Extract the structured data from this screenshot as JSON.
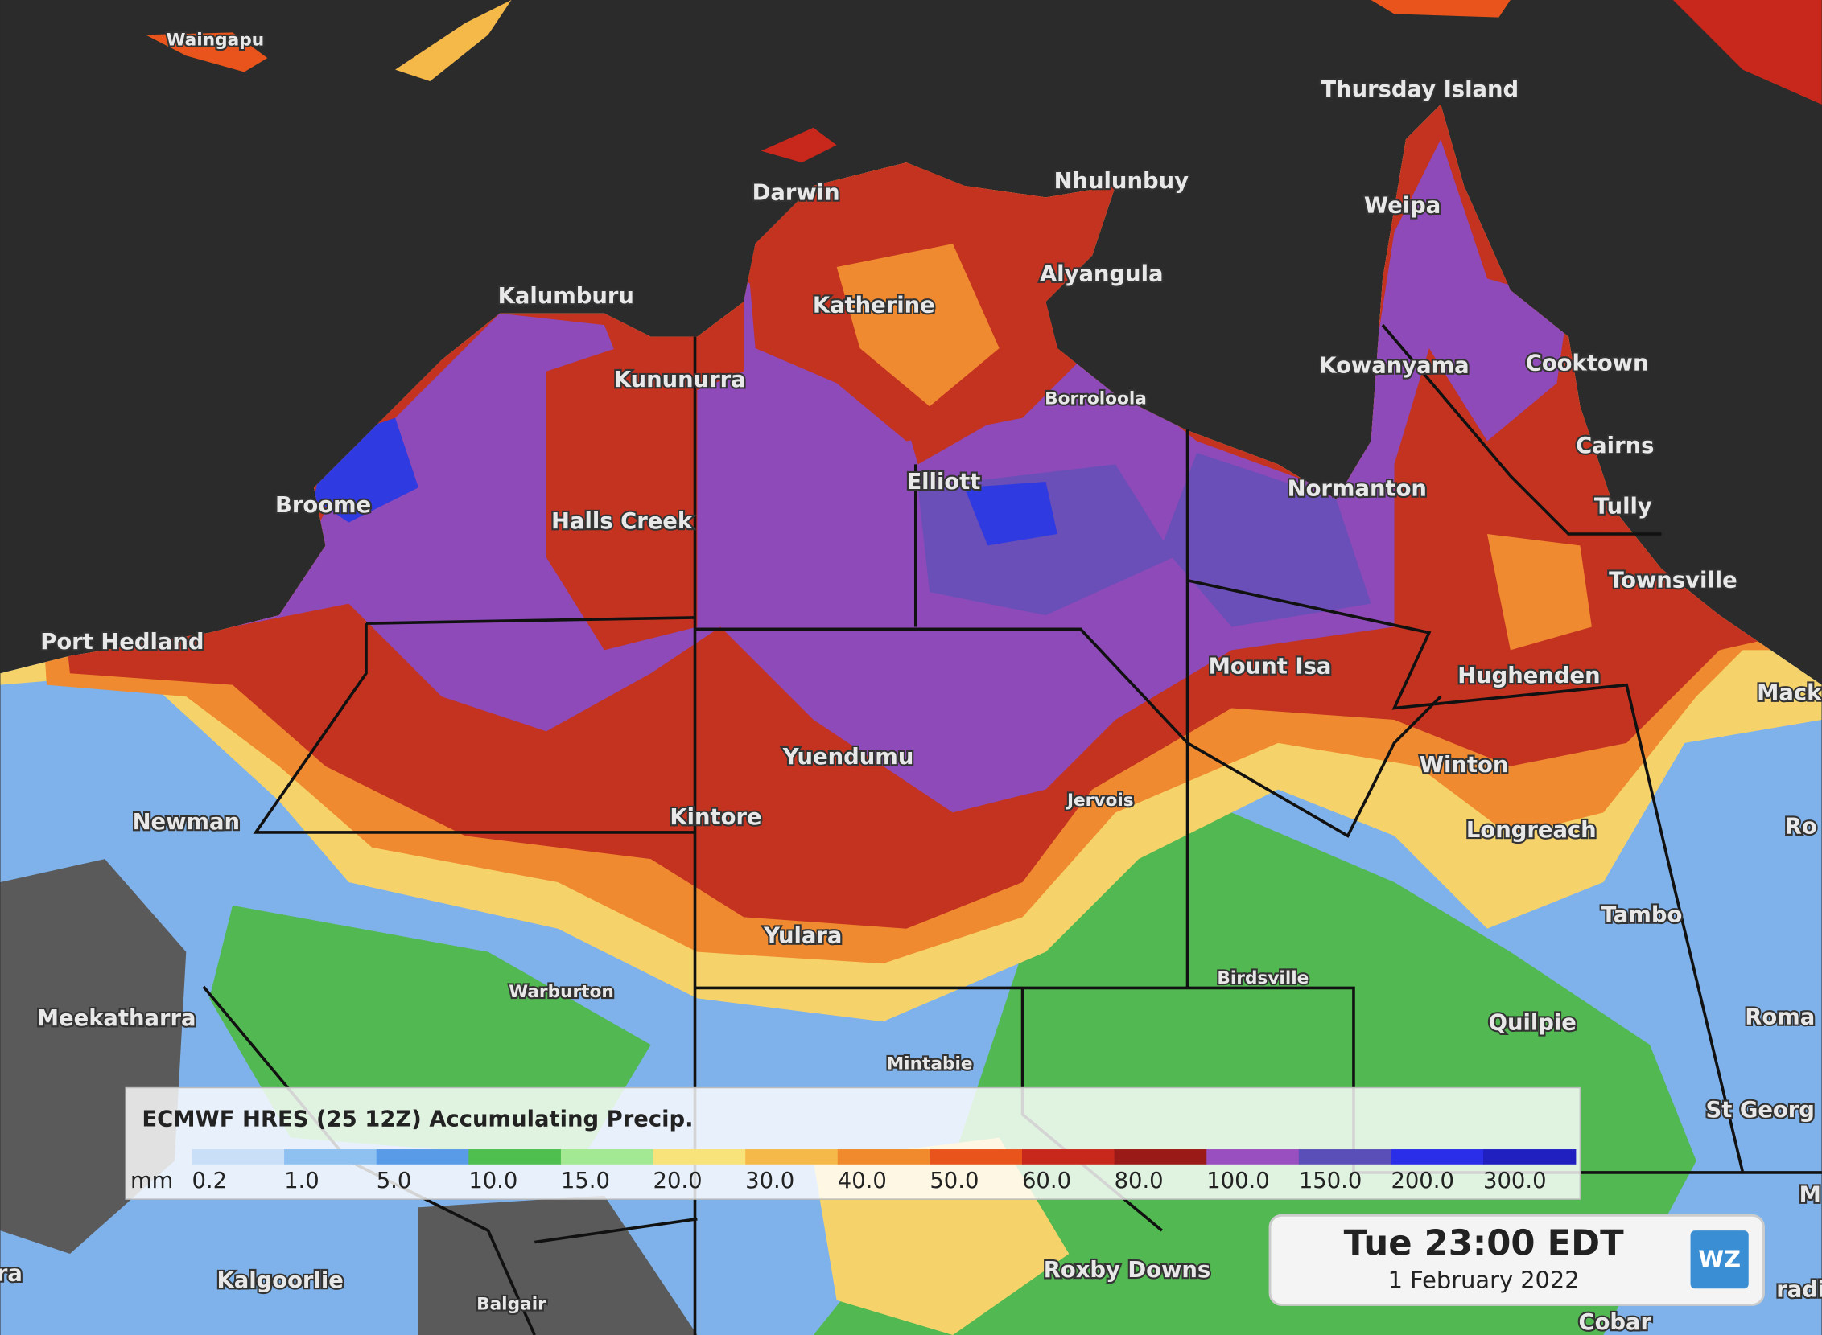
{
  "map": {
    "places": [
      "Waingapu",
      "Thursday Island",
      "Darwin",
      "Nhulunbuy",
      "Weipa",
      "Alyangula",
      "Katherine",
      "Kalumburu",
      "Kununurra",
      "Kowanyama",
      "Cooktown",
      "Borroloola",
      "Cairns",
      "Broome",
      "Elliott",
      "Normanton",
      "Tully",
      "Halls Creek",
      "Townsville",
      "Port Hedland",
      "Mount Isa",
      "Hughenden",
      "Mack",
      "Yuendumu",
      "Winton",
      "Jervois",
      "Newman",
      "Kintore",
      "Longreach",
      "Ro",
      "Yulara",
      "Tambo",
      "Warburton",
      "Birdsville",
      "Meekatharra",
      "Quilpie",
      "Roma",
      "Mintabie",
      "St Georg",
      "Kalgoorlie",
      "Roxby Downs",
      "Balgair",
      "Cobar",
      "M",
      "ra",
      "radi"
    ]
  },
  "legend": {
    "title": "ECMWF HRES (25 12Z) Accumulating Precip.",
    "unit": "mm",
    "ticks": [
      "0.2",
      "1.0",
      "5.0",
      "10.0",
      "15.0",
      "20.0",
      "30.0",
      "40.0",
      "50.0",
      "60.0",
      "80.0",
      "100.0",
      "150.0",
      "200.0",
      "300.0"
    ],
    "colors": [
      "#c9def7",
      "#8ec0f0",
      "#5a9be8",
      "#4fbf4f",
      "#a3e892",
      "#f8e27a",
      "#f5b94a",
      "#f08a2c",
      "#e8541c",
      "#c8281c",
      "#9a1a18",
      "#9a4fc0",
      "#5a4fb8",
      "#2b2ee8",
      "#2020c0"
    ]
  },
  "timestamp": {
    "time": "Tue 23:00 EDT",
    "date": "1 February 2022"
  },
  "logo": "WZ"
}
